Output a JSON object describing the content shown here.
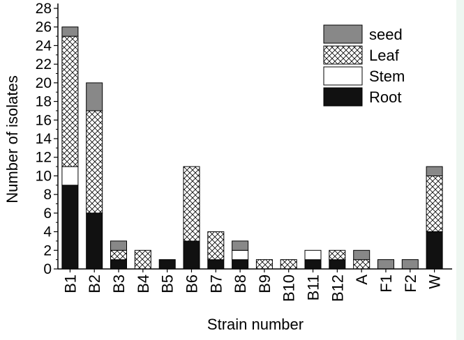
{
  "chart_data": {
    "type": "bar",
    "stacked": true,
    "categories": [
      "B1",
      "B2",
      "B3",
      "B4",
      "B5",
      "B6",
      "B7",
      "B8",
      "B9",
      "B10",
      "B11",
      "B12",
      "A",
      "F1",
      "F2",
      "W"
    ],
    "series": [
      {
        "name": "Root",
        "color": "#111111",
        "pattern": "solid-black",
        "values": [
          9,
          6,
          1,
          0,
          1,
          3,
          1,
          1,
          0,
          0,
          1,
          1,
          0,
          0,
          0,
          4
        ]
      },
      {
        "name": "Stem",
        "color": "#ffffff",
        "pattern": "solid-white",
        "values": [
          2,
          0,
          0,
          0,
          0,
          0,
          0,
          1,
          0,
          0,
          1,
          0,
          0,
          0,
          0,
          0
        ]
      },
      {
        "name": "Leaf",
        "color": "#ffffff",
        "pattern": "cross-hatch",
        "values": [
          14,
          11,
          1,
          2,
          0,
          8,
          3,
          0,
          1,
          1,
          0,
          1,
          1,
          0,
          0,
          6
        ]
      },
      {
        "name": "seed",
        "color": "#888888",
        "pattern": "solid-gray",
        "values": [
          1,
          3,
          1,
          0,
          0,
          0,
          0,
          1,
          0,
          0,
          0,
          0,
          1,
          1,
          1,
          1
        ]
      }
    ],
    "legend_order": [
      "seed",
      "Leaf",
      "Stem",
      "Root"
    ],
    "legend_position": "top-right",
    "xlabel": "Strain number",
    "ylabel": "Number of isolates",
    "ylim": [
      0,
      28
    ],
    "yticks": [
      0,
      2,
      4,
      6,
      8,
      10,
      12,
      14,
      16,
      18,
      20,
      22,
      24,
      26,
      28
    ],
    "grid": false
  }
}
